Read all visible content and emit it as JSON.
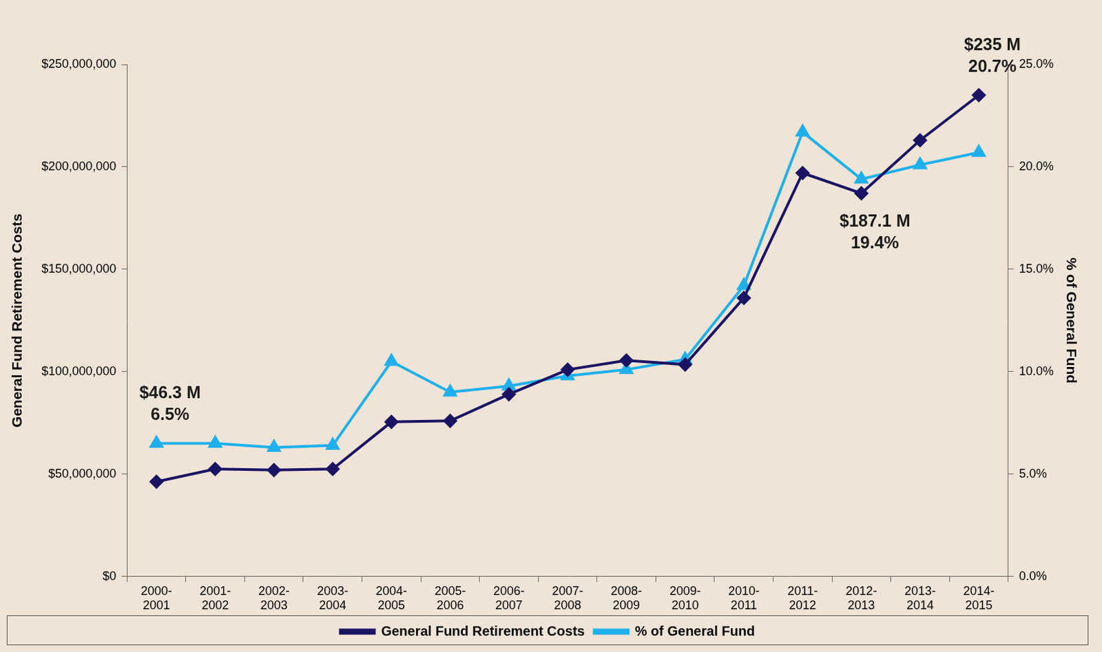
{
  "chart_data": {
    "type": "line",
    "categories": [
      "2000-2001",
      "2001-2002",
      "2002-2003",
      "2003-2004",
      "2004-2005",
      "2005-2006",
      "2006-2007",
      "2007-2008",
      "2008-2009",
      "2009-2010",
      "2010-2011",
      "2011-2012",
      "2012-2013",
      "2013-2014",
      "2014-2015"
    ],
    "series": [
      {
        "name": "General Fund Retirement Costs",
        "color": "#1b1464",
        "marker": "diamond",
        "values": [
          46300000,
          52500000,
          52000000,
          52500000,
          75500000,
          76000000,
          89000000,
          101000000,
          105500000,
          103500000,
          136000000,
          197000000,
          187100000,
          213000000,
          235000000
        ]
      },
      {
        "name": "% of General Fund",
        "color": "#1fb0ec",
        "marker": "triangle",
        "axis": "y2",
        "values": [
          6.5,
          6.5,
          6.3,
          6.4,
          10.5,
          9.0,
          9.3,
          9.8,
          10.1,
          10.6,
          14.2,
          21.7,
          19.4,
          20.1,
          20.7
        ]
      }
    ],
    "y_label": "General Fund Retirement Costs",
    "y2_label": "% of General Fund",
    "ylim": [
      0,
      250000000
    ],
    "yticks": [
      {
        "value": 0,
        "label": "$0"
      },
      {
        "value": 50000000,
        "label": "$50,000,000"
      },
      {
        "value": 100000000,
        "label": "$100,000,000"
      },
      {
        "value": 150000000,
        "label": "$150,000,000"
      },
      {
        "value": 200000000,
        "label": "$200,000,000"
      },
      {
        "value": 250000000,
        "label": "$250,000,000"
      }
    ],
    "y2lim": [
      0,
      25
    ],
    "y2ticks": [
      {
        "value": 0,
        "label": "0.0%"
      },
      {
        "value": 5,
        "label": "5.0%"
      },
      {
        "value": 10,
        "label": "10.0%"
      },
      {
        "value": 15,
        "label": "15.0%"
      },
      {
        "value": 20,
        "label": "20.0%"
      },
      {
        "value": 25,
        "label": "25.0%"
      }
    ],
    "annotations": [
      {
        "category": "2000-2001",
        "text": [
          "$46.3 M",
          "6.5%"
        ]
      },
      {
        "category": "2012-2013",
        "text": [
          "$187.1 M",
          "19.4%"
        ]
      },
      {
        "category": "2014-2015",
        "text": [
          "$235 M",
          "20.7%"
        ]
      }
    ],
    "grid": false,
    "legend": "bottom"
  }
}
